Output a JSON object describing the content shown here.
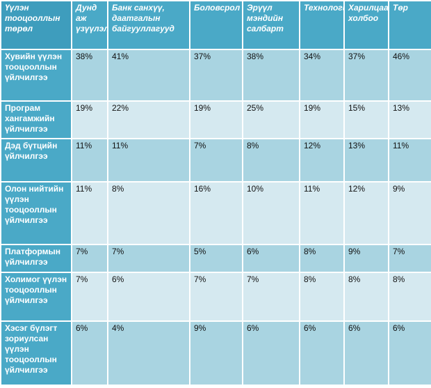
{
  "header": {
    "cells": [
      "Үүлэн тооцооллын төрөл",
      "Дунд аж үзүүлэлт",
      "Банк санхүү, даатгалын байгууллагууд",
      "Боловсрол",
      "Эрүүл мэндийн салбарт",
      "Технологи",
      "Харилцаа холбоо",
      "Төр"
    ]
  },
  "rows": [
    {
      "label": "Хувийн үүлэн тооцооллын үйлчилгээ",
      "values": [
        "38%",
        "41%",
        "37%",
        "38%",
        "34%",
        "37%",
        "46%"
      ]
    },
    {
      "label": "Програм хангамжийн үйлчилгээ",
      "values": [
        "19%",
        "22%",
        "19%",
        "25%",
        "19%",
        "15%",
        "13%"
      ]
    },
    {
      "label": "Дэд бүтцийн үйлчилгээ",
      "values": [
        "11%",
        "11%",
        "7%",
        "8%",
        "12%",
        "13%",
        "11%"
      ]
    },
    {
      "label": "Олон нийтийн үүлэн тооцооллын үйлчилгээ",
      "values": [
        "11%",
        "8%",
        "16%",
        "10%",
        "11%",
        "12%",
        "9%"
      ]
    },
    {
      "label": "Платформын үйлчилгээ",
      "values": [
        "7%",
        "7%",
        "5%",
        "6%",
        "8%",
        "9%",
        "7%"
      ]
    },
    {
      "label": "Холимог үүлэн тооцооллын үйлчилгээ",
      "values": [
        "7%",
        "6%",
        "7%",
        "7%",
        "8%",
        "8%",
        "8%"
      ]
    },
    {
      "label": "Хэсэг бүлэгт зориулсан үүлэн тооцооллын үйлчилгээ",
      "values": [
        "6%",
        "4%",
        "9%",
        "6%",
        "6%",
        "6%",
        "6%"
      ]
    }
  ],
  "colors": {
    "header_bg": "#4aa9c7",
    "row_dark": "#a9d4e1",
    "row_light": "#d5e9f0",
    "border": "#ffffff"
  }
}
